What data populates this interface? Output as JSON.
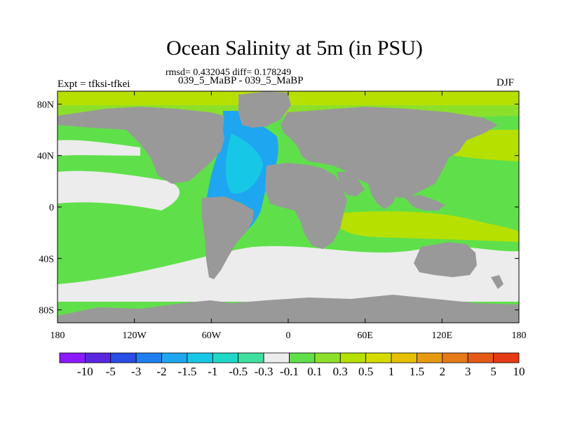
{
  "title": "Ocean Salinity at 5m (in PSU)",
  "stats_line": "rmsd= 0.432045 diff= 0.178249",
  "runs_line": "039_5_MaBP - 039_5_MaBP",
  "expt_label": "Expt = tfksi-tfkei",
  "season_label": "DJF",
  "map": {
    "land_color": "#999999",
    "lat_range": [
      -90,
      90
    ],
    "lon_range": [
      -180,
      180
    ],
    "lat_ticks": [
      {
        "lat": 80,
        "label": "80N"
      },
      {
        "lat": 40,
        "label": "40N"
      },
      {
        "lat": 0,
        "label": "0"
      },
      {
        "lat": -40,
        "label": "40S"
      },
      {
        "lat": -80,
        "label": "80S"
      }
    ],
    "lon_ticks": [
      {
        "lon": -180,
        "label": "180"
      },
      {
        "lon": -120,
        "label": "120W"
      },
      {
        "lon": -60,
        "label": "60W"
      },
      {
        "lon": 0,
        "label": "0"
      },
      {
        "lon": 60,
        "label": "60E"
      },
      {
        "lon": 120,
        "label": "120E"
      },
      {
        "lon": 180,
        "label": "180"
      }
    ]
  },
  "colorbar": {
    "colors": [
      "#8c1aff",
      "#5a26e0",
      "#2a4de6",
      "#1f7ff0",
      "#1fa6f0",
      "#17c8e6",
      "#1fd9c8",
      "#3fe0a0",
      "#ececec",
      "#5fe04a",
      "#8ce02a",
      "#b6e000",
      "#d6dc00",
      "#e6c000",
      "#e69a10",
      "#e67a18",
      "#e65a18",
      "#e63a14"
    ],
    "labels": [
      "-10",
      "-5",
      "-3",
      "-2",
      "-1.5",
      "-1",
      "-0.5",
      "-0.3",
      "-0.1",
      "0.1",
      "0.3",
      "0.5",
      "1",
      "1.5",
      "2",
      "3",
      "5",
      "10"
    ]
  }
}
